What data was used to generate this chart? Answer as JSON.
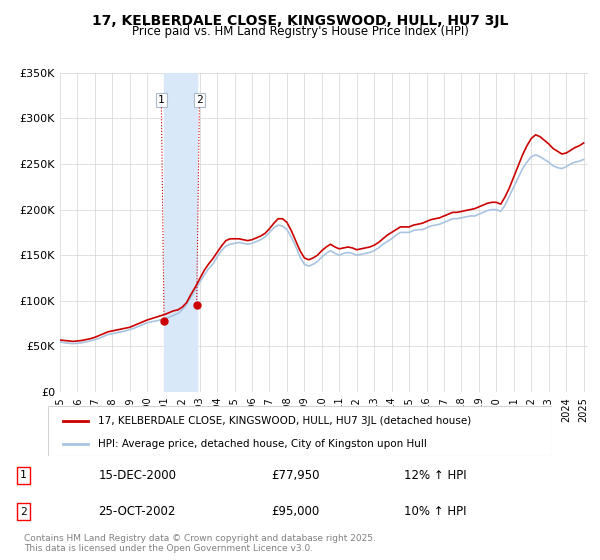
{
  "title": "17, KELBERDALE CLOSE, KINGSWOOD, HULL, HU7 3JL",
  "subtitle": "Price paid vs. HM Land Registry's House Price Index (HPI)",
  "legend_line1": "17, KELBERDALE CLOSE, KINGSWOOD, HULL, HU7 3JL (detached house)",
  "legend_line2": "HPI: Average price, detached house, City of Kingston upon Hull",
  "footnote": "Contains HM Land Registry data © Crown copyright and database right 2025.\nThis data is licensed under the Open Government Licence v3.0.",
  "transaction1_label": "1",
  "transaction1_date": "15-DEC-2000",
  "transaction1_price": "£77,950",
  "transaction1_hpi": "12% ↑ HPI",
  "transaction2_label": "2",
  "transaction2_date": "25-OCT-2002",
  "transaction2_price": "£95,000",
  "transaction2_hpi": "10% ↑ HPI",
  "hpi_color": "#a8c4e0",
  "price_color": "#cc0000",
  "transaction_color": "#cc0000",
  "shaded_color": "#d8e8f8",
  "ylim": [
    0,
    350000
  ],
  "yticks": [
    0,
    50000,
    100000,
    150000,
    200000,
    250000,
    300000,
    350000
  ],
  "ytick_labels": [
    "£0",
    "£50K",
    "£100K",
    "£150K",
    "£200K",
    "£250K",
    "£300K",
    "£350K"
  ],
  "hpi_data": {
    "years": [
      1995.0,
      1995.25,
      1995.5,
      1995.75,
      1996.0,
      1996.25,
      1996.5,
      1996.75,
      1997.0,
      1997.25,
      1997.5,
      1997.75,
      1998.0,
      1998.25,
      1998.5,
      1998.75,
      1999.0,
      1999.25,
      1999.5,
      1999.75,
      2000.0,
      2000.25,
      2000.5,
      2000.75,
      2001.0,
      2001.25,
      2001.5,
      2001.75,
      2002.0,
      2002.25,
      2002.5,
      2002.75,
      2003.0,
      2003.25,
      2003.5,
      2003.75,
      2004.0,
      2004.25,
      2004.5,
      2004.75,
      2005.0,
      2005.25,
      2005.5,
      2005.75,
      2006.0,
      2006.25,
      2006.5,
      2006.75,
      2007.0,
      2007.25,
      2007.5,
      2007.75,
      2008.0,
      2008.25,
      2008.5,
      2008.75,
      2009.0,
      2009.25,
      2009.5,
      2009.75,
      2010.0,
      2010.25,
      2010.5,
      2010.75,
      2011.0,
      2011.25,
      2011.5,
      2011.75,
      2012.0,
      2012.25,
      2012.5,
      2012.75,
      2013.0,
      2013.25,
      2013.5,
      2013.75,
      2014.0,
      2014.25,
      2014.5,
      2014.75,
      2015.0,
      2015.25,
      2015.5,
      2015.75,
      2016.0,
      2016.25,
      2016.5,
      2016.75,
      2017.0,
      2017.25,
      2017.5,
      2017.75,
      2018.0,
      2018.25,
      2018.5,
      2018.75,
      2019.0,
      2019.25,
      2019.5,
      2019.75,
      2020.0,
      2020.25,
      2020.5,
      2020.75,
      2021.0,
      2021.25,
      2021.5,
      2021.75,
      2022.0,
      2022.25,
      2022.5,
      2022.75,
      2023.0,
      2023.25,
      2023.5,
      2023.75,
      2024.0,
      2024.25,
      2024.5,
      2024.75,
      2025.0
    ],
    "values": [
      55000,
      54000,
      53500,
      53000,
      53500,
      54000,
      55000,
      56000,
      57500,
      59000,
      61000,
      63000,
      64000,
      65000,
      66000,
      67000,
      68500,
      70000,
      72000,
      74000,
      76000,
      77000,
      78000,
      79000,
      80000,
      82000,
      84000,
      86000,
      90000,
      96000,
      104000,
      112000,
      120000,
      128000,
      135000,
      140000,
      148000,
      155000,
      160000,
      162000,
      163000,
      164000,
      163000,
      162000,
      163000,
      165000,
      167000,
      170000,
      175000,
      180000,
      183000,
      182000,
      178000,
      170000,
      160000,
      148000,
      140000,
      138000,
      140000,
      143000,
      148000,
      152000,
      155000,
      152000,
      150000,
      152000,
      153000,
      152000,
      150000,
      151000,
      152000,
      153000,
      155000,
      158000,
      162000,
      165000,
      168000,
      172000,
      175000,
      175000,
      175000,
      177000,
      178000,
      178000,
      180000,
      182000,
      183000,
      184000,
      186000,
      188000,
      190000,
      190000,
      191000,
      192000,
      193000,
      193000,
      195000,
      197000,
      199000,
      200000,
      200000,
      198000,
      205000,
      215000,
      225000,
      235000,
      245000,
      252000,
      258000,
      260000,
      258000,
      255000,
      252000,
      248000,
      246000,
      245000,
      247000,
      250000,
      252000,
      253000,
      255000
    ]
  },
  "price_data": {
    "years": [
      1995.0,
      1995.25,
      1995.5,
      1995.75,
      1996.0,
      1996.25,
      1996.5,
      1996.75,
      1997.0,
      1997.25,
      1997.5,
      1997.75,
      1998.0,
      1998.25,
      1998.5,
      1998.75,
      1999.0,
      1999.25,
      1999.5,
      1999.75,
      2000.0,
      2000.25,
      2000.5,
      2000.75,
      2001.0,
      2001.25,
      2001.5,
      2001.75,
      2002.0,
      2002.25,
      2002.5,
      2002.75,
      2003.0,
      2003.25,
      2003.5,
      2003.75,
      2004.0,
      2004.25,
      2004.5,
      2004.75,
      2005.0,
      2005.25,
      2005.5,
      2005.75,
      2006.0,
      2006.25,
      2006.5,
      2006.75,
      2007.0,
      2007.25,
      2007.5,
      2007.75,
      2008.0,
      2008.25,
      2008.5,
      2008.75,
      2009.0,
      2009.25,
      2009.5,
      2009.75,
      2010.0,
      2010.25,
      2010.5,
      2010.75,
      2011.0,
      2011.25,
      2011.5,
      2011.75,
      2012.0,
      2012.25,
      2012.5,
      2012.75,
      2013.0,
      2013.25,
      2013.5,
      2013.75,
      2014.0,
      2014.25,
      2014.5,
      2014.75,
      2015.0,
      2015.25,
      2015.5,
      2015.75,
      2016.0,
      2016.25,
      2016.5,
      2016.75,
      2017.0,
      2017.25,
      2017.5,
      2017.75,
      2018.0,
      2018.25,
      2018.5,
      2018.75,
      2019.0,
      2019.25,
      2019.5,
      2019.75,
      2020.0,
      2020.25,
      2020.5,
      2020.75,
      2021.0,
      2021.25,
      2021.5,
      2021.75,
      2022.0,
      2022.25,
      2022.5,
      2022.75,
      2023.0,
      2023.25,
      2023.5,
      2023.75,
      2024.0,
      2024.25,
      2024.5,
      2024.75,
      2025.0
    ],
    "values": [
      57000,
      56500,
      56000,
      55500,
      56000,
      56500,
      57500,
      58500,
      60000,
      62000,
      64000,
      66000,
      67000,
      68000,
      69000,
      70000,
      71000,
      73000,
      75000,
      77000,
      79000,
      80500,
      82000,
      83500,
      85000,
      87000,
      89000,
      90000,
      93000,
      98000,
      107000,
      115000,
      124000,
      133000,
      140000,
      146000,
      153000,
      160000,
      166000,
      168000,
      168000,
      168000,
      167000,
      166000,
      167000,
      169000,
      171000,
      174000,
      179000,
      185000,
      190000,
      190000,
      186000,
      177000,
      166000,
      155000,
      147000,
      145000,
      147000,
      150000,
      155000,
      159000,
      162000,
      159000,
      157000,
      158000,
      159000,
      158000,
      156000,
      157000,
      158000,
      159000,
      161000,
      164000,
      168000,
      172000,
      175000,
      178000,
      181000,
      181000,
      181000,
      183000,
      184000,
      185000,
      187000,
      189000,
      190000,
      191000,
      193000,
      195000,
      197000,
      197000,
      198000,
      199000,
      200000,
      201000,
      203000,
      205000,
      207000,
      208000,
      208000,
      206000,
      214000,
      224000,
      236000,
      248000,
      260000,
      270000,
      278000,
      282000,
      280000,
      276000,
      272000,
      267000,
      264000,
      261000,
      262000,
      265000,
      268000,
      270000,
      273000
    ]
  },
  "transaction1_x": 2000.958,
  "transaction1_y": 77950,
  "transaction2_x": 2002.833,
  "transaction2_y": 95000,
  "shaded_xmin": 2000.958,
  "shaded_xmax": 2002.833,
  "xmin": 1995.0,
  "xmax": 2025.25
}
